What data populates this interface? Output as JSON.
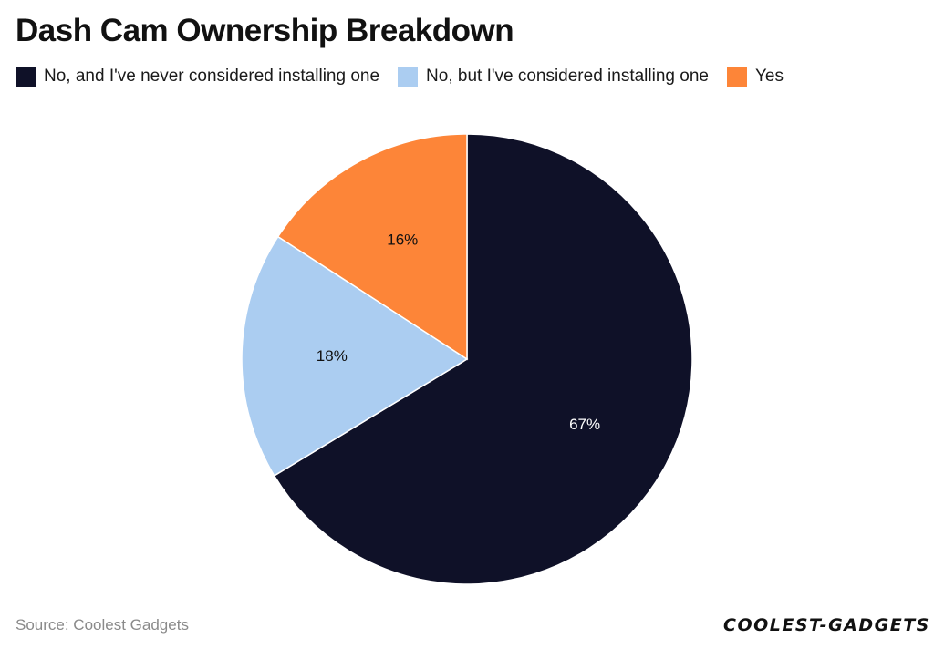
{
  "title": "Dash Cam Ownership Breakdown",
  "source": "Source: Coolest Gadgets",
  "logo_text": "COOLEST-GADGETS",
  "colors": {
    "slice_1": "#0f1128",
    "slice_2": "#abcdf1",
    "slice_3": "#fd8538",
    "label_on_dark": "#ffffff",
    "label_on_light": "#111111"
  },
  "chart_data": {
    "type": "pie",
    "categories": [
      "No, and I've never considered installing one",
      "No, but I've considered installing one",
      "Yes"
    ],
    "values": [
      67,
      18,
      16
    ],
    "labels": [
      "67%",
      "18%",
      "16%"
    ],
    "start_angle_deg": 0,
    "direction": "clockwise",
    "legend_position": "top-left"
  }
}
